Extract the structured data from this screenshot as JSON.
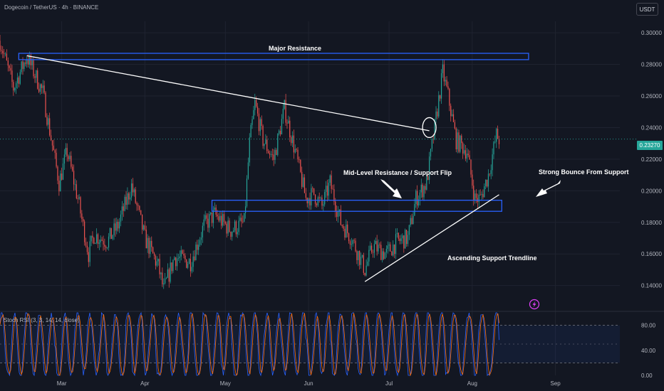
{
  "header": {
    "symbol_line": "Dogecoin / TetherUS · 4h · BINANCE",
    "currency_button": "USDT"
  },
  "current_price_label": "0.23270",
  "indicator_label": "Stoch RSI (3, 3, 14, 14, close)",
  "annotations": {
    "major_resistance": "Major Resistance",
    "mid_level": "Mid-Level Resistance / Support Flip",
    "strong_bounce": "Strong Bounce From Support",
    "ascending_trendline": "Ascending Support Trendline"
  },
  "colors": {
    "background": "#131722",
    "up_candle": "#26a69a",
    "down_candle": "#ef5350",
    "zone_outline": "#2962ff",
    "stoch_k": "#2962ff",
    "stoch_d": "#ff6d00",
    "trendline": "#ffffff"
  },
  "chart_data": {
    "type": "candlestick",
    "y_axis": {
      "ticks": [
        "0.30000",
        "0.28000",
        "0.26000",
        "0.24000",
        "0.22000",
        "0.20000",
        "0.18000",
        "0.16000",
        "0.14000"
      ],
      "tick_values": [
        0.3,
        0.28,
        0.26,
        0.24,
        0.22,
        0.2,
        0.18,
        0.16,
        0.14
      ],
      "range": [
        0.125,
        0.305
      ]
    },
    "x_axis": {
      "ticks": [
        "Mar",
        "Apr",
        "May",
        "Jun",
        "Jul",
        "Aug",
        "Sep"
      ],
      "tick_dates": [
        "2025-03-01",
        "2025-04-01",
        "2025-05-01",
        "2025-06-01",
        "2025-07-01",
        "2025-08-01",
        "2025-09-01"
      ],
      "range": [
        "2025-02-06",
        "2025-09-25"
      ]
    },
    "price_path": [
      [
        "2025-02-06",
        0.295
      ],
      [
        "2025-02-11",
        0.265
      ],
      [
        "2025-02-16",
        0.285
      ],
      [
        "2025-02-22",
        0.262
      ],
      [
        "2025-02-28",
        0.205
      ],
      [
        "2025-03-03",
        0.225
      ],
      [
        "2025-03-07",
        0.195
      ],
      [
        "2025-03-11",
        0.16
      ],
      [
        "2025-03-13",
        0.172
      ],
      [
        "2025-03-18",
        0.168
      ],
      [
        "2025-03-22",
        0.178
      ],
      [
        "2025-03-27",
        0.203
      ],
      [
        "2025-04-01",
        0.17
      ],
      [
        "2025-04-06",
        0.152
      ],
      [
        "2025-04-08",
        0.137
      ],
      [
        "2025-04-12",
        0.158
      ],
      [
        "2025-04-18",
        0.155
      ],
      [
        "2025-04-23",
        0.178
      ],
      [
        "2025-04-27",
        0.185
      ],
      [
        "2025-05-03",
        0.175
      ],
      [
        "2025-05-08",
        0.18
      ],
      [
        "2025-05-10",
        0.23
      ],
      [
        "2025-05-12",
        0.255
      ],
      [
        "2025-05-15",
        0.232
      ],
      [
        "2025-05-19",
        0.22
      ],
      [
        "2025-05-23",
        0.252
      ],
      [
        "2025-05-27",
        0.225
      ],
      [
        "2025-05-31",
        0.195
      ],
      [
        "2025-06-03",
        0.198
      ],
      [
        "2025-06-06",
        0.19
      ],
      [
        "2025-06-09",
        0.205
      ],
      [
        "2025-06-13",
        0.18
      ],
      [
        "2025-06-17",
        0.17
      ],
      [
        "2025-06-22",
        0.15
      ],
      [
        "2025-06-25",
        0.165
      ],
      [
        "2025-06-30",
        0.16
      ],
      [
        "2025-07-04",
        0.168
      ],
      [
        "2025-07-08",
        0.17
      ],
      [
        "2025-07-11",
        0.195
      ],
      [
        "2025-07-15",
        0.205
      ],
      [
        "2025-07-18",
        0.24
      ],
      [
        "2025-07-21",
        0.275
      ],
      [
        "2025-07-23",
        0.26
      ],
      [
        "2025-07-26",
        0.232
      ],
      [
        "2025-07-30",
        0.225
      ],
      [
        "2025-08-02",
        0.195
      ],
      [
        "2025-08-04",
        0.195
      ],
      [
        "2025-08-07",
        0.21
      ],
      [
        "2025-08-10",
        0.235
      ],
      [
        "2025-08-11",
        0.2327
      ]
    ],
    "zones": [
      {
        "name": "Major Resistance",
        "from": "2025-02-13",
        "to": "2025-08-22",
        "low": 0.283,
        "high": 0.287
      },
      {
        "name": "Mid-Level Resistance / Support Flip",
        "from": "2025-04-26",
        "to": "2025-08-12",
        "low": 0.187,
        "high": 0.194
      }
    ],
    "trendlines": [
      {
        "from": [
          "2025-02-16",
          0.2855
        ],
        "to": [
          "2025-07-16",
          0.238
        ]
      },
      {
        "from": [
          "2025-06-22",
          0.1425
        ],
        "to": [
          "2025-08-11",
          0.1975
        ]
      }
    ],
    "highlight_circle": {
      "date": "2025-07-16",
      "price": 0.24
    },
    "last_price": 0.2327,
    "oscillator": {
      "name": "Stoch RSI (3, 3, 14, 14, close)",
      "ticks": [
        "80.00",
        "40.00",
        "0.00"
      ],
      "tick_values": [
        80,
        40,
        0
      ],
      "levels": [
        80,
        20
      ],
      "range": [
        0,
        100
      ]
    }
  }
}
